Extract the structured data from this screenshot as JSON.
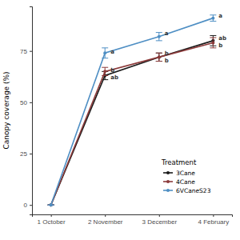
{
  "chart_data": {
    "type": "line",
    "y_label": "Canopy coverage (%)",
    "categories": [
      "1 October",
      "2 November",
      "3 December",
      "4 February"
    ],
    "series": [
      {
        "name": "3Cane",
        "color": "#1a1a1a",
        "marker": "circle",
        "values": [
          0,
          63,
          72,
          80
        ],
        "errors": [
          0,
          2,
          2,
          2.5
        ],
        "letters": [
          null,
          "ab",
          "b",
          "ab"
        ]
      },
      {
        "name": "4Cane",
        "color": "#8b3a3a",
        "marker": "circle",
        "values": [
          0,
          65,
          72,
          79
        ],
        "errors": [
          0,
          2,
          2,
          2.5
        ],
        "letters": [
          null,
          "b",
          "b",
          "b"
        ]
      },
      {
        "name": "6VCaneS23",
        "color": "#4f8fc4",
        "marker": "circle",
        "values": [
          0,
          74,
          82,
          91
        ],
        "errors": [
          0,
          2.5,
          2,
          1.5
        ],
        "letters": [
          null,
          "a",
          "a",
          "a"
        ]
      }
    ],
    "legend_title": "Treatment",
    "legend": "bottom-right",
    "ylim": [
      -4.6,
      96.7
    ],
    "yticks": [
      0,
      25,
      50,
      75
    ],
    "grid": false
  }
}
